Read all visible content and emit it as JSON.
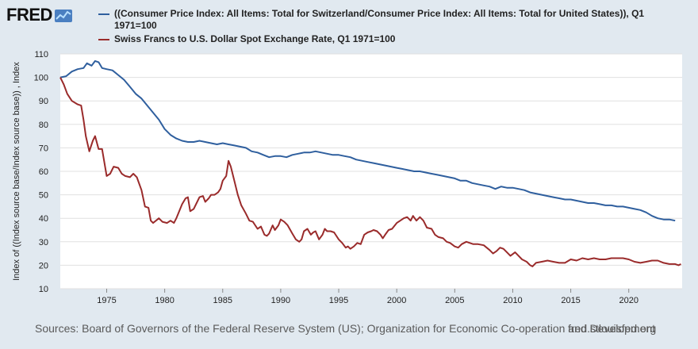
{
  "logo": {
    "text": "FRED",
    "icon": "fred-trend-icon"
  },
  "colors": {
    "background": "#e1e9f0",
    "series_blue": "#2f5f9e",
    "series_red": "#9a2b2b",
    "grid": "#e0e0e0"
  },
  "footer": {
    "sources": "Sources: Board of Governors of the Federal Reserve System (US); Organization for Economic Co-operation and Development",
    "url": "fred.stlouisfed.org"
  },
  "chart_data": {
    "type": "line",
    "title": "",
    "xlabel": "",
    "ylabel": "Index of ((Index source base/Index source base)) , Index",
    "xlim": [
      1971,
      2024.6
    ],
    "ylim": [
      10,
      110
    ],
    "yticks": [
      10,
      20,
      30,
      40,
      50,
      60,
      70,
      80,
      90,
      100,
      110
    ],
    "xticks": [
      1975,
      1980,
      1985,
      1990,
      1995,
      2000,
      2005,
      2010,
      2015,
      2020
    ],
    "grid": true,
    "legend_position": "top",
    "series": [
      {
        "name": "((Consumer Price Index: All Items: Total for Switzerland/Consumer Price Index: All Items: Total for United States)), Q1 1971=100",
        "color": "#2f5f9e",
        "points": [
          [
            1971.0,
            100
          ],
          [
            1971.5,
            100.5
          ],
          [
            1972.0,
            102.5
          ],
          [
            1972.5,
            103.5
          ],
          [
            1973.0,
            104
          ],
          [
            1973.3,
            106
          ],
          [
            1973.7,
            105
          ],
          [
            1974.0,
            107
          ],
          [
            1974.3,
            106.5
          ],
          [
            1974.6,
            104
          ],
          [
            1975.0,
            103.5
          ],
          [
            1975.5,
            103
          ],
          [
            1976.0,
            101
          ],
          [
            1976.5,
            99
          ],
          [
            1977.0,
            96
          ],
          [
            1977.5,
            93
          ],
          [
            1978.0,
            91
          ],
          [
            1978.5,
            88
          ],
          [
            1979.0,
            85
          ],
          [
            1979.5,
            82
          ],
          [
            1980.0,
            78
          ],
          [
            1980.5,
            75.5
          ],
          [
            1981.0,
            74
          ],
          [
            1981.5,
            73
          ],
          [
            1982.0,
            72.5
          ],
          [
            1982.5,
            72.5
          ],
          [
            1983.0,
            73
          ],
          [
            1983.5,
            72.5
          ],
          [
            1984.0,
            72
          ],
          [
            1984.5,
            71.5
          ],
          [
            1985.0,
            72
          ],
          [
            1985.5,
            71.5
          ],
          [
            1986.0,
            71
          ],
          [
            1986.5,
            70.5
          ],
          [
            1987.0,
            70
          ],
          [
            1987.5,
            68.5
          ],
          [
            1988.0,
            68
          ],
          [
            1988.5,
            67
          ],
          [
            1989.0,
            66
          ],
          [
            1989.5,
            66.5
          ],
          [
            1990.0,
            66.5
          ],
          [
            1990.5,
            66
          ],
          [
            1991.0,
            67
          ],
          [
            1991.5,
            67.5
          ],
          [
            1992.0,
            68
          ],
          [
            1992.5,
            68
          ],
          [
            1993.0,
            68.5
          ],
          [
            1993.5,
            68
          ],
          [
            1994.0,
            67.5
          ],
          [
            1994.5,
            67
          ],
          [
            1995.0,
            67
          ],
          [
            1995.5,
            66.5
          ],
          [
            1996.0,
            66
          ],
          [
            1996.5,
            65
          ],
          [
            1997.0,
            64.5
          ],
          [
            1997.5,
            64
          ],
          [
            1998.0,
            63.5
          ],
          [
            1998.5,
            63
          ],
          [
            1999.0,
            62.5
          ],
          [
            1999.5,
            62
          ],
          [
            2000.0,
            61.5
          ],
          [
            2000.5,
            61
          ],
          [
            2001.0,
            60.5
          ],
          [
            2001.5,
            60
          ],
          [
            2002.0,
            60
          ],
          [
            2002.5,
            59.5
          ],
          [
            2003.0,
            59
          ],
          [
            2003.5,
            58.5
          ],
          [
            2004.0,
            58
          ],
          [
            2004.5,
            57.5
          ],
          [
            2005.0,
            57
          ],
          [
            2005.5,
            56
          ],
          [
            2006.0,
            56
          ],
          [
            2006.5,
            55
          ],
          [
            2007.0,
            54.5
          ],
          [
            2007.5,
            54
          ],
          [
            2008.0,
            53.5
          ],
          [
            2008.5,
            52.5
          ],
          [
            2009.0,
            53.5
          ],
          [
            2009.5,
            53
          ],
          [
            2010.0,
            53
          ],
          [
            2010.5,
            52.5
          ],
          [
            2011.0,
            52
          ],
          [
            2011.5,
            51
          ],
          [
            2012.0,
            50.5
          ],
          [
            2012.5,
            50
          ],
          [
            2013.0,
            49.5
          ],
          [
            2013.5,
            49
          ],
          [
            2014.0,
            48.5
          ],
          [
            2014.5,
            48
          ],
          [
            2015.0,
            48
          ],
          [
            2015.5,
            47.5
          ],
          [
            2016.0,
            47
          ],
          [
            2016.5,
            46.5
          ],
          [
            2017.0,
            46.5
          ],
          [
            2017.5,
            46
          ],
          [
            2018.0,
            45.5
          ],
          [
            2018.5,
            45.5
          ],
          [
            2019.0,
            45
          ],
          [
            2019.5,
            45
          ],
          [
            2020.0,
            44.5
          ],
          [
            2020.5,
            44
          ],
          [
            2021.0,
            43.5
          ],
          [
            2021.5,
            42.5
          ],
          [
            2022.0,
            41
          ],
          [
            2022.5,
            40
          ],
          [
            2023.0,
            39.5
          ],
          [
            2023.5,
            39.5
          ],
          [
            2024.0,
            39
          ]
        ]
      },
      {
        "name": "Swiss Francs to U.S. Dollar Spot Exchange Rate, Q1 1971=100",
        "color": "#9a2b2b",
        "points": [
          [
            1971.0,
            100
          ],
          [
            1971.3,
            97
          ],
          [
            1971.6,
            93
          ],
          [
            1972.0,
            90
          ],
          [
            1972.5,
            88.5
          ],
          [
            1972.8,
            88
          ],
          [
            1973.0,
            82
          ],
          [
            1973.2,
            75
          ],
          [
            1973.5,
            68.5
          ],
          [
            1973.8,
            73
          ],
          [
            1974.0,
            75
          ],
          [
            1974.3,
            69.5
          ],
          [
            1974.6,
            69.5
          ],
          [
            1975.0,
            58
          ],
          [
            1975.3,
            59
          ],
          [
            1975.6,
            62
          ],
          [
            1976.0,
            61.5
          ],
          [
            1976.3,
            59
          ],
          [
            1976.6,
            58
          ],
          [
            1977.0,
            57.5
          ],
          [
            1977.3,
            59
          ],
          [
            1977.6,
            57.5
          ],
          [
            1978.0,
            52
          ],
          [
            1978.3,
            45
          ],
          [
            1978.6,
            44.5
          ],
          [
            1978.8,
            39
          ],
          [
            1979.0,
            38
          ],
          [
            1979.5,
            40
          ],
          [
            1979.8,
            38.5
          ],
          [
            1980.2,
            38
          ],
          [
            1980.5,
            39
          ],
          [
            1980.8,
            38
          ],
          [
            1981.0,
            40
          ],
          [
            1981.5,
            46
          ],
          [
            1981.8,
            48.5
          ],
          [
            1982.0,
            49
          ],
          [
            1982.2,
            43
          ],
          [
            1982.5,
            44
          ],
          [
            1982.8,
            47
          ],
          [
            1983.0,
            49
          ],
          [
            1983.3,
            49.5
          ],
          [
            1983.5,
            47
          ],
          [
            1983.8,
            48.5
          ],
          [
            1984.0,
            50
          ],
          [
            1984.3,
            50
          ],
          [
            1984.6,
            51
          ],
          [
            1984.8,
            52.5
          ],
          [
            1985.0,
            56
          ],
          [
            1985.3,
            58
          ],
          [
            1985.5,
            64.5
          ],
          [
            1985.7,
            62
          ],
          [
            1986.0,
            56
          ],
          [
            1986.3,
            50
          ],
          [
            1986.6,
            45.5
          ],
          [
            1987.0,
            42
          ],
          [
            1987.3,
            39
          ],
          [
            1987.6,
            38.5
          ],
          [
            1988.0,
            35.5
          ],
          [
            1988.3,
            36.5
          ],
          [
            1988.6,
            33
          ],
          [
            1988.8,
            32.5
          ],
          [
            1989.0,
            33.5
          ],
          [
            1989.3,
            37
          ],
          [
            1989.5,
            35
          ],
          [
            1989.8,
            37
          ],
          [
            1990.0,
            39.5
          ],
          [
            1990.3,
            38.5
          ],
          [
            1990.6,
            37
          ],
          [
            1991.0,
            33.5
          ],
          [
            1991.3,
            31
          ],
          [
            1991.6,
            30
          ],
          [
            1991.8,
            31
          ],
          [
            1992.0,
            34.5
          ],
          [
            1992.3,
            35.5
          ],
          [
            1992.6,
            33
          ],
          [
            1992.8,
            34
          ],
          [
            1993.0,
            34.5
          ],
          [
            1993.3,
            31
          ],
          [
            1993.6,
            33
          ],
          [
            1993.8,
            35.5
          ],
          [
            1994.0,
            34.5
          ],
          [
            1994.3,
            34.5
          ],
          [
            1994.6,
            34
          ],
          [
            1995.0,
            31
          ],
          [
            1995.3,
            29.5
          ],
          [
            1995.6,
            27.5
          ],
          [
            1995.8,
            28
          ],
          [
            1996.0,
            27
          ],
          [
            1996.3,
            28
          ],
          [
            1996.6,
            29.5
          ],
          [
            1996.9,
            29
          ],
          [
            1997.2,
            33
          ],
          [
            1997.5,
            34
          ],
          [
            1997.8,
            34.5
          ],
          [
            1998.0,
            35
          ],
          [
            1998.3,
            34.5
          ],
          [
            1998.6,
            33
          ],
          [
            1998.8,
            31.5
          ],
          [
            1999.0,
            33
          ],
          [
            1999.3,
            35
          ],
          [
            1999.6,
            35.5
          ],
          [
            2000.0,
            38
          ],
          [
            2000.3,
            39
          ],
          [
            2000.6,
            40
          ],
          [
            2000.9,
            40.5
          ],
          [
            2001.2,
            39
          ],
          [
            2001.4,
            41
          ],
          [
            2001.7,
            39
          ],
          [
            2002.0,
            40.5
          ],
          [
            2002.3,
            39
          ],
          [
            2002.6,
            36
          ],
          [
            2003.0,
            35.5
          ],
          [
            2003.3,
            33
          ],
          [
            2003.6,
            32
          ],
          [
            2004.0,
            31.5
          ],
          [
            2004.3,
            30
          ],
          [
            2004.6,
            29.5
          ],
          [
            2005.0,
            28
          ],
          [
            2005.3,
            27.5
          ],
          [
            2005.6,
            29
          ],
          [
            2006.0,
            30
          ],
          [
            2006.3,
            29.5
          ],
          [
            2006.6,
            29
          ],
          [
            2007.0,
            29
          ],
          [
            2007.5,
            28.5
          ],
          [
            2008.0,
            26.5
          ],
          [
            2008.3,
            25
          ],
          [
            2008.6,
            26
          ],
          [
            2008.9,
            27.5
          ],
          [
            2009.2,
            27
          ],
          [
            2009.5,
            25.5
          ],
          [
            2009.8,
            24
          ],
          [
            2010.2,
            25.5
          ],
          [
            2010.5,
            24
          ],
          [
            2010.8,
            22.5
          ],
          [
            2011.2,
            21.5
          ],
          [
            2011.5,
            20
          ],
          [
            2011.7,
            19.5
          ],
          [
            2012.0,
            21
          ],
          [
            2012.5,
            21.5
          ],
          [
            2013.0,
            22
          ],
          [
            2013.5,
            21.5
          ],
          [
            2014.0,
            21
          ],
          [
            2014.5,
            21
          ],
          [
            2015.0,
            22.5
          ],
          [
            2015.5,
            22
          ],
          [
            2016.0,
            23
          ],
          [
            2016.5,
            22.5
          ],
          [
            2017.0,
            23
          ],
          [
            2017.5,
            22.5
          ],
          [
            2018.0,
            22.5
          ],
          [
            2018.5,
            23
          ],
          [
            2019.0,
            23
          ],
          [
            2019.5,
            23
          ],
          [
            2020.0,
            22.5
          ],
          [
            2020.5,
            21.5
          ],
          [
            2021.0,
            21
          ],
          [
            2021.5,
            21.5
          ],
          [
            2022.0,
            22
          ],
          [
            2022.5,
            22
          ],
          [
            2023.0,
            21
          ],
          [
            2023.5,
            20.5
          ],
          [
            2024.0,
            20.5
          ],
          [
            2024.3,
            20
          ],
          [
            2024.5,
            20.5
          ]
        ]
      }
    ]
  }
}
